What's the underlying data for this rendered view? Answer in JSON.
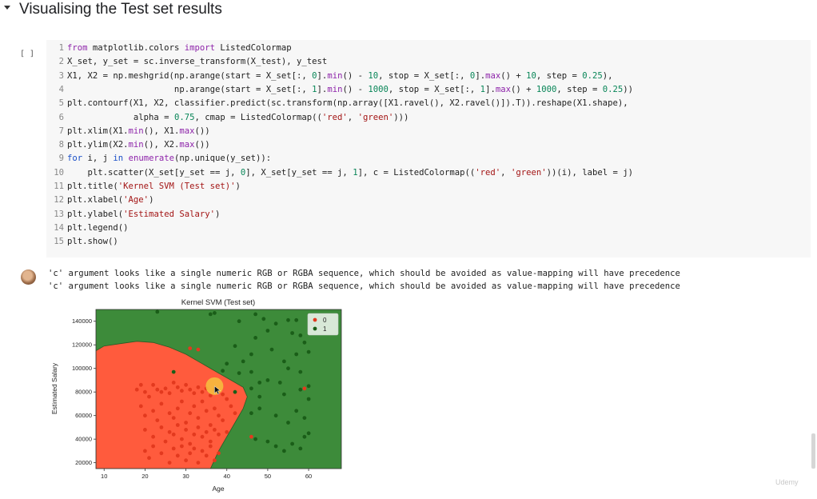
{
  "section": {
    "title": "Visualising the Test set results"
  },
  "cell": {
    "run_label": "[ ]",
    "lines": [
      {
        "n": "1",
        "tokens": [
          {
            "t": "from",
            "c": "kw"
          },
          {
            "t": " matplotlib.colors "
          },
          {
            "t": "import",
            "c": "kw"
          },
          {
            "t": " ListedColormap"
          }
        ]
      },
      {
        "n": "2",
        "tokens": [
          {
            "t": "X_set, y_set = sc.inverse_transform(X_test), y_test"
          }
        ]
      },
      {
        "n": "3",
        "tokens": [
          {
            "t": "X1, X2 = np.meshgrid(np.arange(start = X_set[:, "
          },
          {
            "t": "0",
            "c": "num"
          },
          {
            "t": "]."
          },
          {
            "t": "min",
            "c": "kw"
          },
          {
            "t": "() - "
          },
          {
            "t": "10",
            "c": "num"
          },
          {
            "t": ", stop = X_set[:, "
          },
          {
            "t": "0",
            "c": "num"
          },
          {
            "t": "]."
          },
          {
            "t": "max",
            "c": "kw"
          },
          {
            "t": "() + "
          },
          {
            "t": "10",
            "c": "num"
          },
          {
            "t": ", step = "
          },
          {
            "t": "0.25",
            "c": "num"
          },
          {
            "t": "),"
          }
        ]
      },
      {
        "n": "4",
        "tokens": [
          {
            "t": "                     np.arange(start = X_set[:, "
          },
          {
            "t": "1",
            "c": "num"
          },
          {
            "t": "]."
          },
          {
            "t": "min",
            "c": "kw"
          },
          {
            "t": "() - "
          },
          {
            "t": "1000",
            "c": "num"
          },
          {
            "t": ", stop = X_set[:, "
          },
          {
            "t": "1",
            "c": "num"
          },
          {
            "t": "]."
          },
          {
            "t": "max",
            "c": "kw"
          },
          {
            "t": "() + "
          },
          {
            "t": "1000",
            "c": "num"
          },
          {
            "t": ", step = "
          },
          {
            "t": "0.25",
            "c": "num"
          },
          {
            "t": "))"
          }
        ]
      },
      {
        "n": "5",
        "tokens": [
          {
            "t": "plt.contourf(X1, X2, classifier.predict(sc.transform(np.array([X1.ravel(), X2.ravel()]).T)).reshape(X1.shape),"
          }
        ]
      },
      {
        "n": "6",
        "tokens": [
          {
            "t": "             alpha = "
          },
          {
            "t": "0.75",
            "c": "num"
          },
          {
            "t": ", cmap = ListedColormap(("
          },
          {
            "t": "'red'",
            "c": "str"
          },
          {
            "t": ", "
          },
          {
            "t": "'green'",
            "c": "str"
          },
          {
            "t": ")))"
          }
        ]
      },
      {
        "n": "7",
        "tokens": [
          {
            "t": "plt.xlim(X1."
          },
          {
            "t": "min",
            "c": "kw"
          },
          {
            "t": "(), X1."
          },
          {
            "t": "max",
            "c": "kw"
          },
          {
            "t": "())"
          }
        ]
      },
      {
        "n": "8",
        "tokens": [
          {
            "t": "plt.ylim(X2."
          },
          {
            "t": "min",
            "c": "kw"
          },
          {
            "t": "(), X2."
          },
          {
            "t": "max",
            "c": "kw"
          },
          {
            "t": "())"
          }
        ]
      },
      {
        "n": "9",
        "tokens": [
          {
            "t": "for",
            "c": "kw2"
          },
          {
            "t": " i, j "
          },
          {
            "t": "in",
            "c": "kw2"
          },
          {
            "t": " "
          },
          {
            "t": "enumerate",
            "c": "kw"
          },
          {
            "t": "(np.unique(y_set)):"
          }
        ]
      },
      {
        "n": "10",
        "tokens": [
          {
            "t": "    plt.scatter(X_set[y_set == j, "
          },
          {
            "t": "0",
            "c": "num"
          },
          {
            "t": "], X_set[y_set == j, "
          },
          {
            "t": "1",
            "c": "num"
          },
          {
            "t": "], c = ListedColormap(("
          },
          {
            "t": "'red'",
            "c": "str"
          },
          {
            "t": ", "
          },
          {
            "t": "'green'",
            "c": "str"
          },
          {
            "t": "))(i), label = j)"
          }
        ]
      },
      {
        "n": "11",
        "tokens": [
          {
            "t": "plt.title("
          },
          {
            "t": "'Kernel SVM (Test set)'",
            "c": "str"
          },
          {
            "t": ")"
          }
        ]
      },
      {
        "n": "12",
        "tokens": [
          {
            "t": "plt.xlabel("
          },
          {
            "t": "'Age'",
            "c": "str"
          },
          {
            "t": ")"
          }
        ]
      },
      {
        "n": "13",
        "tokens": [
          {
            "t": "plt.ylabel("
          },
          {
            "t": "'Estimated Salary'",
            "c": "str"
          },
          {
            "t": ")"
          }
        ]
      },
      {
        "n": "14",
        "tokens": [
          {
            "t": "plt.legend()"
          }
        ]
      },
      {
        "n": "15",
        "tokens": [
          {
            "t": "plt.show()"
          }
        ]
      }
    ]
  },
  "output": {
    "warnings": [
      "'c' argument looks like a single numeric RGB or RGBA sequence, which should be avoided as value-mapping will have precedence",
      "'c' argument looks like a single numeric RGB or RGBA sequence, which should be avoided as value-mapping will have precedence"
    ]
  },
  "watermark": "Udemy",
  "colors": {
    "code_bg": "#f7f7f7",
    "region_red": "#ff5b3d",
    "region_green": "#3d8b3a",
    "point_red": "#e3391e",
    "point_green": "#1a5e18",
    "cursor_highlight": "#f6c23e"
  },
  "chart_data": {
    "type": "scatter",
    "title": "Kernel SVM (Test set)",
    "xlabel": "Age",
    "ylabel": "Estimated Salary",
    "xlim": [
      8,
      68
    ],
    "ylim": [
      15000,
      150000
    ],
    "xticks": [
      10,
      20,
      30,
      40,
      50,
      60
    ],
    "yticks": [
      20000,
      40000,
      60000,
      80000,
      100000,
      120000,
      140000
    ],
    "legend": {
      "position": "top-right",
      "entries": [
        "0",
        "1"
      ]
    },
    "regions": [
      {
        "class": "1",
        "color": "green",
        "area": "background"
      },
      {
        "class": "0",
        "color": "red",
        "boundary": [
          [
            8,
            115000
          ],
          [
            10,
            119000
          ],
          [
            14,
            121000
          ],
          [
            18,
            123000
          ],
          [
            22,
            122000
          ],
          [
            26,
            118000
          ],
          [
            30,
            112000
          ],
          [
            34,
            104000
          ],
          [
            38,
            96000
          ],
          [
            41,
            90000
          ],
          [
            44,
            84000
          ],
          [
            45,
            76000
          ],
          [
            44,
            66000
          ],
          [
            42,
            54000
          ],
          [
            40,
            42000
          ],
          [
            38,
            30000
          ],
          [
            36,
            15000
          ],
          [
            8,
            15000
          ]
        ]
      }
    ],
    "series": [
      {
        "name": "0",
        "color": "red",
        "points": [
          [
            18,
            82000
          ],
          [
            19,
            86000
          ],
          [
            20,
            80000
          ],
          [
            21,
            76000
          ],
          [
            22,
            86000
          ],
          [
            23,
            82000
          ],
          [
            24,
            80000
          ],
          [
            25,
            83000
          ],
          [
            26,
            79000
          ],
          [
            27,
            88000
          ],
          [
            28,
            84000
          ],
          [
            29,
            81000
          ],
          [
            30,
            86000
          ],
          [
            31,
            82000
          ],
          [
            32,
            79000
          ],
          [
            33,
            84000
          ],
          [
            34,
            80000
          ],
          [
            35,
            83000
          ],
          [
            36,
            77000
          ],
          [
            37,
            82000
          ],
          [
            38,
            80000
          ],
          [
            39,
            78000
          ],
          [
            40,
            74000
          ],
          [
            19,
            68000
          ],
          [
            20,
            60000
          ],
          [
            22,
            64000
          ],
          [
            23,
            56000
          ],
          [
            24,
            70000
          ],
          [
            26,
            62000
          ],
          [
            27,
            58000
          ],
          [
            28,
            66000
          ],
          [
            29,
            72000
          ],
          [
            30,
            54000
          ],
          [
            31,
            62000
          ],
          [
            32,
            68000
          ],
          [
            33,
            58000
          ],
          [
            34,
            72000
          ],
          [
            35,
            64000
          ],
          [
            36,
            52000
          ],
          [
            37,
            66000
          ],
          [
            38,
            60000
          ],
          [
            39,
            56000
          ],
          [
            41,
            68000
          ],
          [
            42,
            62000
          ],
          [
            20,
            48000
          ],
          [
            22,
            42000
          ],
          [
            24,
            50000
          ],
          [
            25,
            38000
          ],
          [
            26,
            46000
          ],
          [
            27,
            44000
          ],
          [
            28,
            52000
          ],
          [
            29,
            40000
          ],
          [
            30,
            48000
          ],
          [
            31,
            36000
          ],
          [
            32,
            44000
          ],
          [
            33,
            50000
          ],
          [
            34,
            42000
          ],
          [
            35,
            46000
          ],
          [
            36,
            38000
          ],
          [
            37,
            48000
          ],
          [
            38,
            44000
          ],
          [
            40,
            46000
          ],
          [
            20,
            30000
          ],
          [
            21,
            24000
          ],
          [
            22,
            34000
          ],
          [
            24,
            28000
          ],
          [
            26,
            20000
          ],
          [
            27,
            32000
          ],
          [
            28,
            26000
          ],
          [
            29,
            34000
          ],
          [
            30,
            22000
          ],
          [
            31,
            28000
          ],
          [
            32,
            32000
          ],
          [
            33,
            20000
          ],
          [
            34,
            30000
          ],
          [
            35,
            26000
          ],
          [
            36,
            34000
          ],
          [
            37,
            22000
          ],
          [
            38,
            28000
          ],
          [
            31,
            117000
          ],
          [
            33,
            116000
          ],
          [
            59,
            83000
          ],
          [
            46,
            42000
          ]
        ]
      },
      {
        "name": "1",
        "color": "green",
        "points": [
          [
            23,
            148000
          ],
          [
            36,
            146000
          ],
          [
            37,
            147000
          ],
          [
            43,
            140000
          ],
          [
            47,
            146000
          ],
          [
            49,
            142000
          ],
          [
            55,
            141000
          ],
          [
            57,
            141000
          ],
          [
            52,
            138000
          ],
          [
            56,
            130000
          ],
          [
            58,
            128000
          ],
          [
            42,
            119000
          ],
          [
            44,
            106000
          ],
          [
            46,
            112000
          ],
          [
            47,
            126000
          ],
          [
            50,
            132000
          ],
          [
            51,
            116000
          ],
          [
            54,
            106000
          ],
          [
            57,
            112000
          ],
          [
            59,
            122000
          ],
          [
            60,
            114000
          ],
          [
            27,
            97000
          ],
          [
            39,
            98000
          ],
          [
            40,
            104000
          ],
          [
            43,
            96000
          ],
          [
            46,
            97000
          ],
          [
            48,
            88000
          ],
          [
            50,
            90000
          ],
          [
            53,
            88000
          ],
          [
            55,
            100000
          ],
          [
            58,
            97000
          ],
          [
            60,
            85000
          ],
          [
            42,
            80000
          ],
          [
            46,
            83000
          ],
          [
            48,
            76000
          ],
          [
            54,
            78000
          ],
          [
            58,
            82000
          ],
          [
            60,
            74000
          ],
          [
            46,
            62000
          ],
          [
            48,
            66000
          ],
          [
            52,
            60000
          ],
          [
            55,
            54000
          ],
          [
            57,
            64000
          ],
          [
            59,
            58000
          ],
          [
            47,
            40000
          ],
          [
            50,
            38000
          ],
          [
            52,
            34000
          ],
          [
            54,
            30000
          ],
          [
            56,
            36000
          ],
          [
            58,
            32000
          ],
          [
            59,
            42000
          ],
          [
            60,
            45000
          ]
        ]
      }
    ]
  }
}
